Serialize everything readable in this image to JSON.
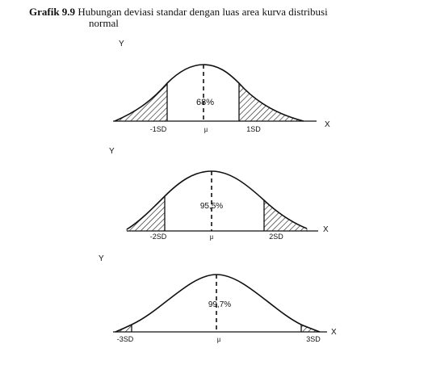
{
  "caption": {
    "label": "Grafik 9.9",
    "text_line1": "Hubungan deviasi standar dengan luas area kurva distribusi",
    "text_line2": "normal"
  },
  "panels": [
    {
      "y_axis": "Y",
      "x_axis": "X",
      "percent": "68%",
      "left_label": "-1SD",
      "mu_label": "μ",
      "right_label": "1SD"
    },
    {
      "y_axis": "Y",
      "x_axis": "X",
      "percent": "95,5%",
      "left_label": "-2SD",
      "mu_label": "μ",
      "right_label": "2SD"
    },
    {
      "y_axis": "Y",
      "x_axis": "X",
      "percent": "99,7%",
      "left_label": "-3SD",
      "mu_label": "μ",
      "right_label": "3SD"
    }
  ]
}
